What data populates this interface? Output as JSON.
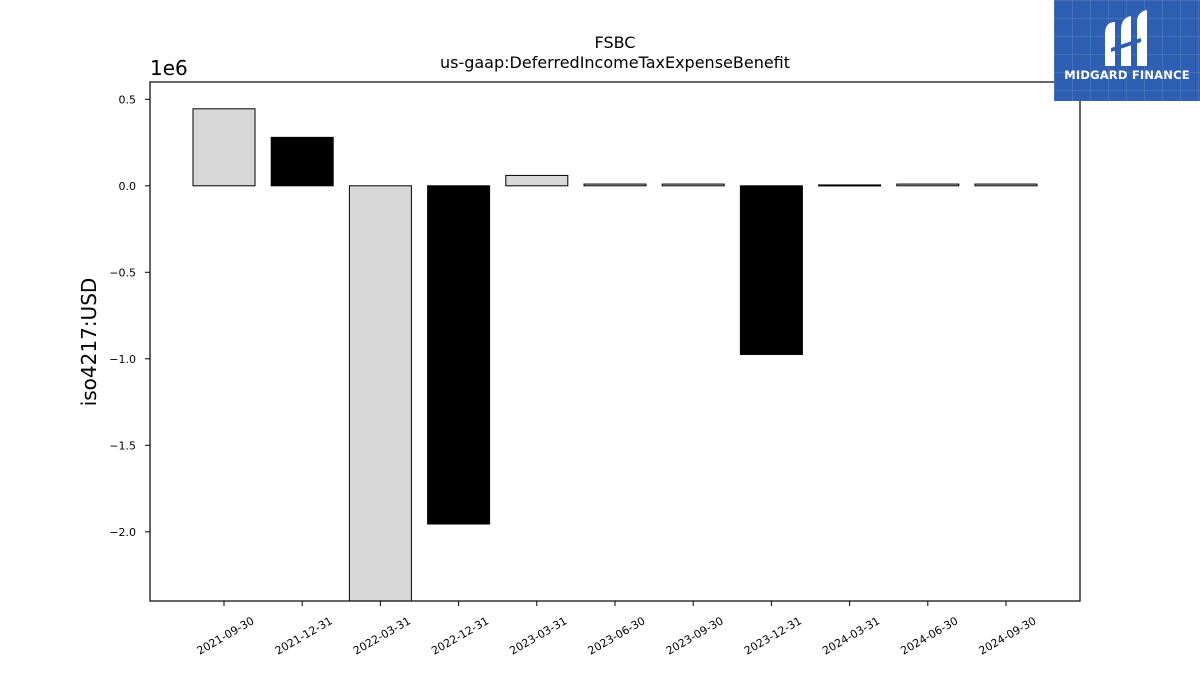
{
  "chart_data": {
    "type": "bar",
    "title": "FSBC",
    "subtitle": "us-gaap:DeferredIncomeTaxExpenseBenefit",
    "ylabel": "iso4217:USD",
    "xlabel": "",
    "y_offset_label": "1e6",
    "ylim": [
      -2.4,
      0.6
    ],
    "yticks": [
      0.5,
      0.0,
      -0.5,
      -1.0,
      -1.5,
      -2.0
    ],
    "ytick_labels": [
      "0.5",
      "0.0",
      "−0.5",
      "−1.0",
      "−1.5",
      "−2.0"
    ],
    "categories": [
      "2021-09-30",
      "2021-12-31",
      "2022-03-31",
      "2022-12-31",
      "2023-03-31",
      "2023-06-30",
      "2023-09-30",
      "2023-12-31",
      "2024-03-31",
      "2024-06-30",
      "2024-09-30"
    ],
    "values": [
      0.445,
      0.28,
      -2.45,
      -1.955,
      0.06,
      0.01,
      0.01,
      -0.975,
      0.005,
      0.01,
      0.01
    ],
    "bar_colors": [
      "#d8d8d8",
      "#000000",
      "#d8d8d8",
      "#000000",
      "#d8d8d8",
      "#d8d8d8",
      "#d8d8d8",
      "#000000",
      "#000000",
      "#d8d8d8",
      "#d8d8d8"
    ],
    "grid": false
  },
  "logo": {
    "text": "MIDGARD FINANCE",
    "background": "#2f5fb3"
  }
}
